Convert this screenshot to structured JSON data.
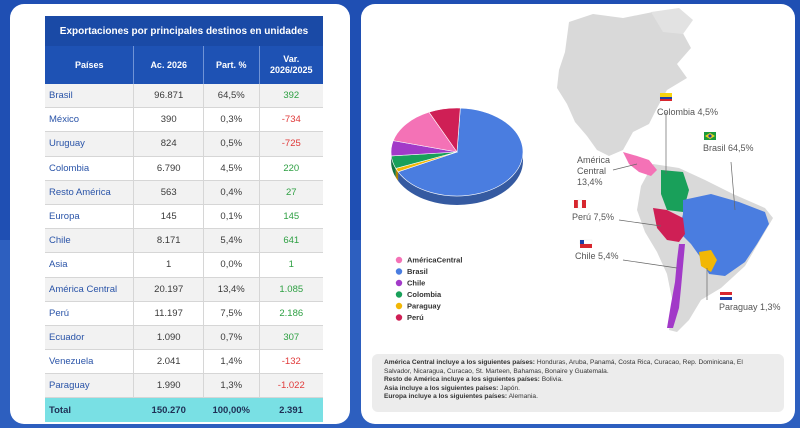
{
  "table": {
    "title": "Exportaciones por principales destinos en unidades",
    "headers": [
      "Países",
      "Ac. 2026",
      "Part. %",
      "Var. 2026/2025"
    ],
    "rows": [
      {
        "pais": "Brasil",
        "ac": "96.871",
        "part": "64,5%",
        "var": "392",
        "sign": "pos"
      },
      {
        "pais": "México",
        "ac": "390",
        "part": "0,3%",
        "var": "-734",
        "sign": "neg"
      },
      {
        "pais": "Uruguay",
        "ac": "824",
        "part": "0,5%",
        "var": "-725",
        "sign": "neg"
      },
      {
        "pais": "Colombia",
        "ac": "6.790",
        "part": "4,5%",
        "var": "220",
        "sign": "pos"
      },
      {
        "pais": "Resto América",
        "ac": "563",
        "part": "0,4%",
        "var": "27",
        "sign": "pos"
      },
      {
        "pais": "Europa",
        "ac": "145",
        "part": "0,1%",
        "var": "145",
        "sign": "pos"
      },
      {
        "pais": "Chile",
        "ac": "8.171",
        "part": "5,4%",
        "var": "641",
        "sign": "pos"
      },
      {
        "pais": "Asia",
        "ac": "1",
        "part": "0,0%",
        "var": "1",
        "sign": "pos"
      },
      {
        "pais": "América Central",
        "ac": "20.197",
        "part": "13,4%",
        "var": "1.085",
        "sign": "pos"
      },
      {
        "pais": "Perú",
        "ac": "11.197",
        "part": "7,5%",
        "var": "2.186",
        "sign": "pos"
      },
      {
        "pais": "Ecuador",
        "ac": "1.090",
        "part": "0,7%",
        "var": "307",
        "sign": "pos"
      },
      {
        "pais": "Venezuela",
        "ac": "2.041",
        "part": "1,4%",
        "var": "-132",
        "sign": "neg"
      },
      {
        "pais": "Paraguay",
        "ac": "1.990",
        "part": "1,3%",
        "var": "-1.022",
        "sign": "neg"
      }
    ],
    "total": {
      "pais": "Total",
      "ac": "150.270",
      "part": "100,00%",
      "var": "2.391"
    }
  },
  "chart_data": {
    "type": "pie",
    "slices": [
      {
        "name": "Brasil",
        "value": 64.5,
        "color": "#4a7de0"
      },
      {
        "name": "Paraguay",
        "value": 1.3,
        "color": "#f2b705"
      },
      {
        "name": "Colombia",
        "value": 4.5,
        "color": "#19a05a"
      },
      {
        "name": "Chile",
        "value": 5.4,
        "color": "#a23ac8"
      },
      {
        "name": "AméricaCentral",
        "value": 13.4,
        "color": "#f472b6"
      },
      {
        "name": "Perú",
        "value": 7.5,
        "color": "#cf1f55"
      }
    ],
    "legend": [
      "AméricaCentral",
      "Brasil",
      "Chile",
      "Colombia",
      "Paraguay",
      "Perú"
    ],
    "legend_colors": [
      "#f472b6",
      "#4a7de0",
      "#a23ac8",
      "#19a05a",
      "#f2b705",
      "#cf1f55"
    ],
    "legend_position": "bottom-left"
  },
  "map": {
    "labels": [
      {
        "id": "colombia",
        "text": "Colombia 4,5%"
      },
      {
        "id": "brasil",
        "text": "Brasil 64,5%"
      },
      {
        "id": "america-central-1",
        "text": "América"
      },
      {
        "id": "america-central-2",
        "text": "Central"
      },
      {
        "id": "america-central-3",
        "text": "13,4%"
      },
      {
        "id": "peru",
        "text": "Perú 7,5%"
      },
      {
        "id": "chile",
        "text": "Chile 5,4%"
      },
      {
        "id": "paraguay",
        "text": "Paraguay 1,3%"
      }
    ]
  },
  "notes": [
    {
      "bold": "América Central incluye a los siguientes países:",
      "text": " Honduras, Aruba, Panamá, Costa Rica, Curacao, Rep. Dominicana, El Salvador, Nicaragua, Curacao, St. Marteen, Bahamas, Bonaire y Guatemala."
    },
    {
      "bold": "Resto de América incluye a los siguientes países:",
      "text": " Bolivia."
    },
    {
      "bold": "Asia incluye a los siguientes países:",
      "text": " Japón."
    },
    {
      "bold": "Europa incluye a los siguientes países:",
      "text": " Alemania."
    }
  ]
}
